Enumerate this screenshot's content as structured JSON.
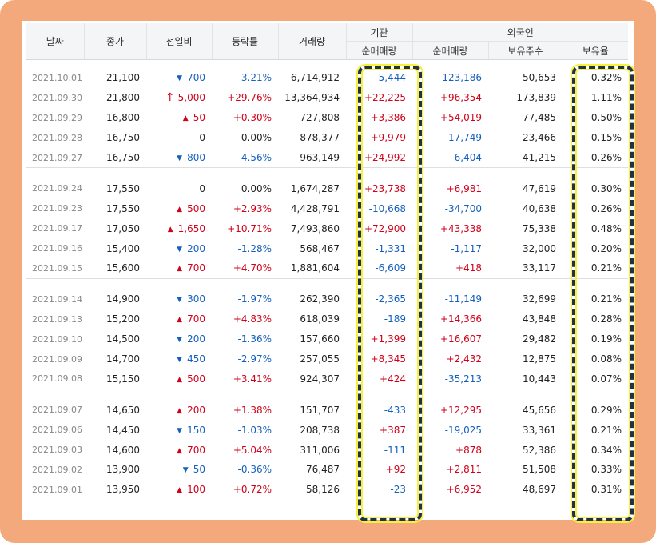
{
  "headers": {
    "date": "날짜",
    "close": "종가",
    "change": "전일비",
    "rate": "등락률",
    "volume": "거래량",
    "institution_group": "기관",
    "institution_net": "순매매량",
    "foreign_group": "외국인",
    "foreign_net": "순매매량",
    "foreign_holdings": "보유주수",
    "foreign_ratio": "보유율"
  },
  "colors": {
    "up": "#d0021b",
    "down": "#1560bd",
    "frame": "#f4a97d",
    "highlight_dash": "#23304a",
    "highlight_glow": "#f5f237"
  },
  "groups": [
    [
      {
        "date": "2021.10.01",
        "close": "21,100",
        "dir": "down",
        "chg": "700",
        "rate": "-3.21%",
        "vol": "6,714,912",
        "inst": "-5,444",
        "frg": "-123,186",
        "hold": "50,653",
        "ratio": "0.32%"
      },
      {
        "date": "2021.09.30",
        "close": "21,800",
        "dir": "upper",
        "chg": "5,000",
        "rate": "+29.76%",
        "vol": "13,364,934",
        "inst": "+22,225",
        "frg": "+96,354",
        "hold": "173,839",
        "ratio": "1.11%"
      },
      {
        "date": "2021.09.29",
        "close": "16,800",
        "dir": "up",
        "chg": "50",
        "rate": "+0.30%",
        "vol": "727,808",
        "inst": "+3,386",
        "frg": "+54,019",
        "hold": "77,485",
        "ratio": "0.50%"
      },
      {
        "date": "2021.09.28",
        "close": "16,750",
        "dir": "flat",
        "chg": "0",
        "rate": "0.00%",
        "vol": "878,377",
        "inst": "+9,979",
        "frg": "-17,749",
        "hold": "23,466",
        "ratio": "0.15%"
      },
      {
        "date": "2021.09.27",
        "close": "16,750",
        "dir": "down",
        "chg": "800",
        "rate": "-4.56%",
        "vol": "963,149",
        "inst": "+24,992",
        "frg": "-6,404",
        "hold": "41,215",
        "ratio": "0.26%"
      }
    ],
    [
      {
        "date": "2021.09.24",
        "close": "17,550",
        "dir": "flat",
        "chg": "0",
        "rate": "0.00%",
        "vol": "1,674,287",
        "inst": "+23,738",
        "frg": "+6,981",
        "hold": "47,619",
        "ratio": "0.30%"
      },
      {
        "date": "2021.09.23",
        "close": "17,550",
        "dir": "up",
        "chg": "500",
        "rate": "+2.93%",
        "vol": "4,428,791",
        "inst": "-10,668",
        "frg": "-34,700",
        "hold": "40,638",
        "ratio": "0.26%"
      },
      {
        "date": "2021.09.17",
        "close": "17,050",
        "dir": "up",
        "chg": "1,650",
        "rate": "+10.71%",
        "vol": "7,493,860",
        "inst": "+72,900",
        "frg": "+43,338",
        "hold": "75,338",
        "ratio": "0.48%"
      },
      {
        "date": "2021.09.16",
        "close": "15,400",
        "dir": "down",
        "chg": "200",
        "rate": "-1.28%",
        "vol": "568,467",
        "inst": "-1,331",
        "frg": "-1,117",
        "hold": "32,000",
        "ratio": "0.20%"
      },
      {
        "date": "2021.09.15",
        "close": "15,600",
        "dir": "up",
        "chg": "700",
        "rate": "+4.70%",
        "vol": "1,881,604",
        "inst": "-6,609",
        "frg": "+418",
        "hold": "33,117",
        "ratio": "0.21%"
      }
    ],
    [
      {
        "date": "2021.09.14",
        "close": "14,900",
        "dir": "down",
        "chg": "300",
        "rate": "-1.97%",
        "vol": "262,390",
        "inst": "-2,365",
        "frg": "-11,149",
        "hold": "32,699",
        "ratio": "0.21%"
      },
      {
        "date": "2021.09.13",
        "close": "15,200",
        "dir": "up",
        "chg": "700",
        "rate": "+4.83%",
        "vol": "618,039",
        "inst": "-189",
        "frg": "+14,366",
        "hold": "43,848",
        "ratio": "0.28%"
      },
      {
        "date": "2021.09.10",
        "close": "14,500",
        "dir": "down",
        "chg": "200",
        "rate": "-1.36%",
        "vol": "157,660",
        "inst": "+1,399",
        "frg": "+16,607",
        "hold": "29,482",
        "ratio": "0.19%"
      },
      {
        "date": "2021.09.09",
        "close": "14,700",
        "dir": "down",
        "chg": "450",
        "rate": "-2.97%",
        "vol": "257,055",
        "inst": "+8,345",
        "frg": "+2,432",
        "hold": "12,875",
        "ratio": "0.08%"
      },
      {
        "date": "2021.09.08",
        "close": "15,150",
        "dir": "up",
        "chg": "500",
        "rate": "+3.41%",
        "vol": "924,307",
        "inst": "+424",
        "frg": "-35,213",
        "hold": "10,443",
        "ratio": "0.07%"
      }
    ],
    [
      {
        "date": "2021.09.07",
        "close": "14,650",
        "dir": "up",
        "chg": "200",
        "rate": "+1.38%",
        "vol": "151,707",
        "inst": "-433",
        "frg": "+12,295",
        "hold": "45,656",
        "ratio": "0.29%"
      },
      {
        "date": "2021.09.06",
        "close": "14,450",
        "dir": "down",
        "chg": "150",
        "rate": "-1.03%",
        "vol": "208,738",
        "inst": "+387",
        "frg": "-19,025",
        "hold": "33,361",
        "ratio": "0.21%"
      },
      {
        "date": "2021.09.03",
        "close": "14,600",
        "dir": "up",
        "chg": "700",
        "rate": "+5.04%",
        "vol": "311,006",
        "inst": "-111",
        "frg": "+878",
        "hold": "52,386",
        "ratio": "0.34%"
      },
      {
        "date": "2021.09.02",
        "close": "13,900",
        "dir": "down",
        "chg": "50",
        "rate": "-0.36%",
        "vol": "76,487",
        "inst": "+92",
        "frg": "+2,811",
        "hold": "51,508",
        "ratio": "0.33%"
      },
      {
        "date": "2021.09.01",
        "close": "13,950",
        "dir": "up",
        "chg": "100",
        "rate": "+0.72%",
        "vol": "58,126",
        "inst": "-23",
        "frg": "+6,952",
        "hold": "48,697",
        "ratio": "0.31%"
      }
    ]
  ]
}
